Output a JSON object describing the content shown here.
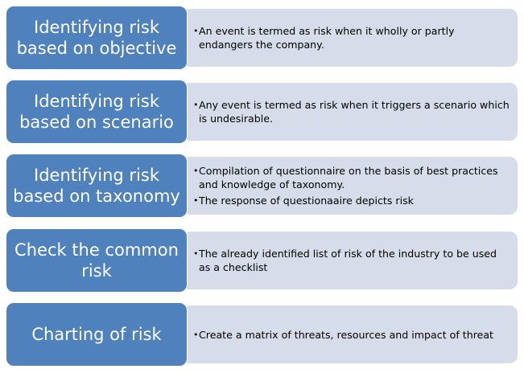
{
  "colors": {
    "label_fill": "#4f81bd",
    "detail_fill": "#d6dce9",
    "label_text": "#ffffff",
    "detail_text": "#000000"
  },
  "rows": [
    {
      "label": "Identifying risk based on objective",
      "bullets": [
        "An event is termed as risk when it wholly or partly endangers the company."
      ]
    },
    {
      "label": "Identifying risk based on scenario",
      "bullets": [
        "Any event is termed as risk when it triggers a scenario which is undesirable."
      ]
    },
    {
      "label": "Identifying risk based on taxonomy",
      "bullets": [
        "Compilation of questionnaire on the basis of best practices and knowledge of taxonomy.",
        "The response of questionaaire depicts risk"
      ]
    },
    {
      "label": "Check the common risk",
      "bullets": [
        "The already identified list of risk of the industry to be used as a checklist"
      ]
    },
    {
      "label": "Charting of risk",
      "bullets": [
        "Create a matrix  of threats, resources and impact of threat"
      ]
    }
  ]
}
